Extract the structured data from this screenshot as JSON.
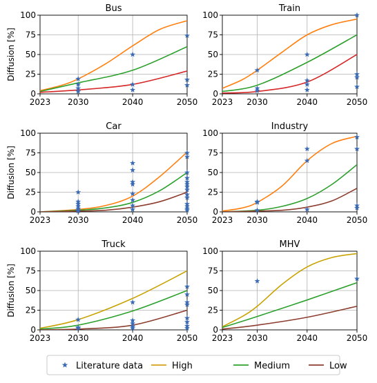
{
  "chart_data": [
    {
      "type": "line",
      "title": "Bus",
      "ylabel": "Diffusion [%]",
      "xlim": [
        2023,
        2050
      ],
      "ylim": [
        0,
        100
      ],
      "xticks": [
        "2023",
        "2030",
        "2040",
        "2050"
      ],
      "yticks": [
        "0",
        "25",
        "50",
        "75",
        "100"
      ],
      "grid": true,
      "series": [
        {
          "name": "High",
          "color": "#ff7f0e",
          "x": [
            2023,
            2027,
            2030,
            2035,
            2040,
            2045,
            2050
          ],
          "y": [
            4,
            11,
            19,
            38,
            61,
            82,
            93
          ]
        },
        {
          "name": "Medium",
          "color": "#2ca02c",
          "x": [
            2023,
            2030,
            2040,
            2050
          ],
          "y": [
            3,
            14,
            30,
            60
          ]
        },
        {
          "name": "Low",
          "color": "#d62728",
          "x": [
            2023,
            2030,
            2040,
            2050
          ],
          "y": [
            2,
            5,
            12,
            29
          ]
        }
      ],
      "scatter": {
        "name": "Literature data",
        "x": [
          2030,
          2030,
          2030,
          2030,
          2040,
          2040,
          2040,
          2050,
          2050,
          2050
        ],
        "y": [
          19,
          12,
          7,
          3,
          50,
          12,
          5,
          74,
          18,
          11
        ]
      }
    },
    {
      "type": "line",
      "title": "Train",
      "ylabel": "",
      "xlim": [
        2023,
        2050
      ],
      "ylim": [
        0,
        100
      ],
      "xticks": [
        "2023",
        "2030",
        "2040",
        "2050"
      ],
      "yticks": [
        "0",
        "25",
        "50",
        "75",
        "100"
      ],
      "grid": true,
      "series": [
        {
          "name": "High",
          "color": "#ff7f0e",
          "x": [
            2023,
            2027,
            2030,
            2035,
            2040,
            2045,
            2050
          ],
          "y": [
            7,
            18,
            30,
            53,
            75,
            88,
            95
          ]
        },
        {
          "name": "Medium",
          "color": "#2ca02c",
          "x": [
            2023,
            2030,
            2040,
            2050
          ],
          "y": [
            3,
            11,
            40,
            75
          ]
        },
        {
          "name": "Low",
          "color": "#d62728",
          "x": [
            2023,
            2030,
            2040,
            2050
          ],
          "y": [
            1,
            3,
            15,
            50
          ]
        }
      ],
      "scatter": {
        "name": "Literature data",
        "x": [
          2030,
          2030,
          2030,
          2040,
          2040,
          2040,
          2040,
          2050,
          2050,
          2050,
          2050
        ],
        "y": [
          30,
          7,
          4,
          50,
          17,
          12,
          5,
          100,
          25,
          21,
          9
        ]
      }
    },
    {
      "type": "line",
      "title": "Car",
      "ylabel": "Diffusion [%]",
      "xlim": [
        2023,
        2050
      ],
      "ylim": [
        0,
        100
      ],
      "xticks": [
        "2023",
        "2030",
        "2040",
        "2050"
      ],
      "yticks": [
        "0",
        "25",
        "50",
        "75",
        "100"
      ],
      "grid": true,
      "series": [
        {
          "name": "High",
          "color": "#ff7f0e",
          "x": [
            2023,
            2030,
            2035,
            2040,
            2045,
            2050
          ],
          "y": [
            0,
            3,
            8,
            20,
            45,
            76
          ]
        },
        {
          "name": "Medium",
          "color": "#2ca02c",
          "x": [
            2023,
            2030,
            2035,
            2040,
            2045,
            2050
          ],
          "y": [
            0,
            2,
            5,
            12,
            27,
            50
          ]
        },
        {
          "name": "Low",
          "color": "#8c3d2e",
          "x": [
            2023,
            2030,
            2035,
            2040,
            2045,
            2050
          ],
          "y": [
            0,
            1,
            2,
            6,
            13,
            25
          ]
        }
      ],
      "scatter": {
        "name": "Literature data",
        "x": [
          2030,
          2030,
          2030,
          2030,
          2030,
          2030,
          2030,
          2040,
          2040,
          2040,
          2040,
          2040,
          2040,
          2040,
          2040,
          2050,
          2050,
          2050,
          2050,
          2050,
          2050,
          2050,
          2050,
          2050,
          2050,
          2050,
          2050,
          2050,
          2050
        ],
        "y": [
          25,
          13,
          10,
          7,
          4,
          2,
          1,
          62,
          53,
          38,
          35,
          23,
          15,
          8,
          3,
          75,
          70,
          50,
          43,
          38,
          35,
          32,
          28,
          22,
          18,
          10,
          7,
          4,
          2
        ]
      }
    },
    {
      "type": "line",
      "title": "Industry",
      "ylabel": "",
      "xlim": [
        2023,
        2050
      ],
      "ylim": [
        0,
        100
      ],
      "xticks": [
        "2023",
        "2030",
        "2040",
        "2050"
      ],
      "yticks": [
        "0",
        "25",
        "50",
        "75",
        "100"
      ],
      "grid": true,
      "series": [
        {
          "name": "High",
          "color": "#ff7f0e",
          "x": [
            2023,
            2027,
            2030,
            2035,
            2040,
            2045,
            2050
          ],
          "y": [
            1,
            5,
            12,
            33,
            65,
            87,
            96
          ]
        },
        {
          "name": "Medium",
          "color": "#2ca02c",
          "x": [
            2023,
            2030,
            2035,
            2040,
            2045,
            2050
          ],
          "y": [
            0,
            2,
            7,
            17,
            35,
            60
          ]
        },
        {
          "name": "Low",
          "color": "#8c3d2e",
          "x": [
            2023,
            2030,
            2035,
            2040,
            2045,
            2050
          ],
          "y": [
            0,
            1,
            2,
            6,
            14,
            30
          ]
        }
      ],
      "scatter": {
        "name": "Literature data",
        "x": [
          2030,
          2030,
          2030,
          2040,
          2040,
          2040,
          2050,
          2050,
          2050,
          2050
        ],
        "y": [
          13,
          12,
          2,
          80,
          65,
          3,
          95,
          80,
          8,
          5
        ]
      }
    },
    {
      "type": "line",
      "title": "Truck",
      "ylabel": "Diffusion [%]",
      "xlim": [
        2023,
        2050
      ],
      "ylim": [
        0,
        100
      ],
      "xticks": [
        "2023",
        "2030",
        "2040",
        "2050"
      ],
      "yticks": [
        "0",
        "25",
        "50",
        "75",
        "100"
      ],
      "grid": true,
      "series": [
        {
          "name": "High",
          "color": "#c8a200",
          "x": [
            2023,
            2030,
            2040,
            2050
          ],
          "y": [
            2,
            13,
            40,
            75
          ]
        },
        {
          "name": "Medium",
          "color": "#2ca02c",
          "x": [
            2023,
            2030,
            2040,
            2050
          ],
          "y": [
            1,
            6,
            24,
            50
          ]
        },
        {
          "name": "Low",
          "color": "#8c3d2e",
          "x": [
            2023,
            2030,
            2040,
            2050
          ],
          "y": [
            0,
            1,
            6,
            25
          ]
        }
      ],
      "scatter": {
        "name": "Literature data",
        "x": [
          2030,
          2030,
          2030,
          2040,
          2040,
          2040,
          2040,
          2040,
          2050,
          2050,
          2050,
          2050,
          2050,
          2050,
          2050,
          2050
        ],
        "y": [
          13,
          3,
          2,
          35,
          12,
          8,
          4,
          2,
          55,
          45,
          35,
          32,
          15,
          10,
          5,
          2
        ]
      }
    },
    {
      "type": "line",
      "title": "MHV",
      "ylabel": "",
      "xlim": [
        2023,
        2050
      ],
      "ylim": [
        0,
        100
      ],
      "xticks": [
        "2023",
        "2030",
        "2040",
        "2050"
      ],
      "yticks": [
        "0",
        "25",
        "50",
        "75",
        "100"
      ],
      "grid": true,
      "series": [
        {
          "name": "High",
          "color": "#c8a200",
          "x": [
            2023,
            2027,
            2030,
            2035,
            2040,
            2045,
            2050
          ],
          "y": [
            4,
            17,
            30,
            58,
            80,
            92,
            97
          ]
        },
        {
          "name": "Medium",
          "color": "#2ca02c",
          "x": [
            2023,
            2030,
            2040,
            2050
          ],
          "y": [
            3,
            17,
            38,
            60
          ]
        },
        {
          "name": "Low",
          "color": "#8c3d2e",
          "x": [
            2023,
            2030,
            2040,
            2050
          ],
          "y": [
            1,
            6,
            16,
            30
          ]
        }
      ],
      "scatter": {
        "name": "Literature data",
        "x": [
          2030,
          2050
        ],
        "y": [
          62,
          65
        ]
      }
    }
  ],
  "legend": {
    "placement": "bottom",
    "items": [
      {
        "label": "Literature data",
        "kind": "star",
        "color": "#3b6bb5"
      },
      {
        "label": "High",
        "kind": "line",
        "color": "#d4a017"
      },
      {
        "label": "Medium",
        "kind": "line",
        "color": "#2ca02c"
      },
      {
        "label": "Low",
        "kind": "line",
        "color": "#8c3d2e"
      }
    ]
  },
  "style": {
    "star_color": "#3b6bb5"
  }
}
